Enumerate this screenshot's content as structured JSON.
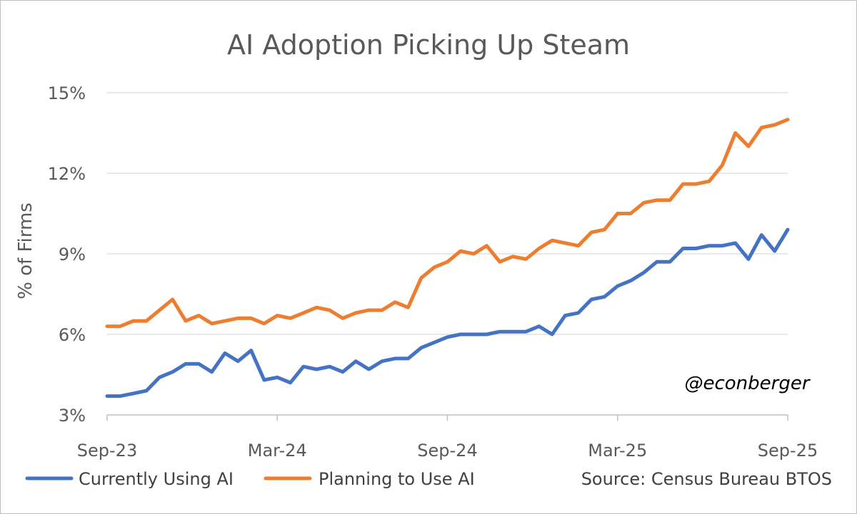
{
  "chart_data": {
    "type": "line",
    "title": "AI Adoption Picking Up Steam",
    "xlabel": "",
    "ylabel": "% of Firms",
    "ylim": [
      3,
      15
    ],
    "yticks": [
      3,
      6,
      9,
      12,
      15
    ],
    "ytick_labels": [
      "3%",
      "6%",
      "9%",
      "12%",
      "15%"
    ],
    "x_tick_labels": [
      "Sep-23",
      "Mar-24",
      "Sep-24",
      "Mar-25",
      "Sep-25"
    ],
    "x_tick_indices": [
      0,
      13,
      26,
      39,
      52
    ],
    "grid": true,
    "legend_position": "bottom",
    "series": [
      {
        "name": "Currently Using AI",
        "color": "#4472C4",
        "values": [
          3.7,
          3.7,
          3.8,
          3.9,
          4.4,
          4.6,
          4.9,
          4.9,
          4.6,
          5.3,
          5.0,
          5.4,
          4.3,
          4.4,
          4.2,
          4.8,
          4.7,
          4.8,
          4.6,
          5.0,
          4.7,
          5.0,
          5.1,
          5.1,
          5.5,
          5.7,
          5.9,
          6.0,
          6.0,
          6.0,
          6.1,
          6.1,
          6.1,
          6.3,
          6.0,
          6.7,
          6.8,
          7.3,
          7.4,
          7.8,
          8.0,
          8.3,
          8.7,
          8.7,
          9.2,
          9.2,
          9.3,
          9.3,
          9.4,
          8.8,
          9.7,
          9.1,
          9.9
        ]
      },
      {
        "name": "Planning to Use AI",
        "color": "#ED7D31",
        "values": [
          6.3,
          6.3,
          6.5,
          6.5,
          6.9,
          7.3,
          6.5,
          6.7,
          6.4,
          6.5,
          6.6,
          6.6,
          6.4,
          6.7,
          6.6,
          6.8,
          7.0,
          6.9,
          6.6,
          6.8,
          6.9,
          6.9,
          7.2,
          7.0,
          8.1,
          8.5,
          8.7,
          9.1,
          9.0,
          9.3,
          8.7,
          8.9,
          8.8,
          9.2,
          9.5,
          9.4,
          9.3,
          9.8,
          9.9,
          10.5,
          10.5,
          10.9,
          11.0,
          11.0,
          11.6,
          11.6,
          11.7,
          12.3,
          13.5,
          13.0,
          13.7,
          13.8,
          14.0
        ]
      }
    ],
    "annotations": [
      "@econberger"
    ],
    "source": "Source: Census Bureau BTOS"
  }
}
